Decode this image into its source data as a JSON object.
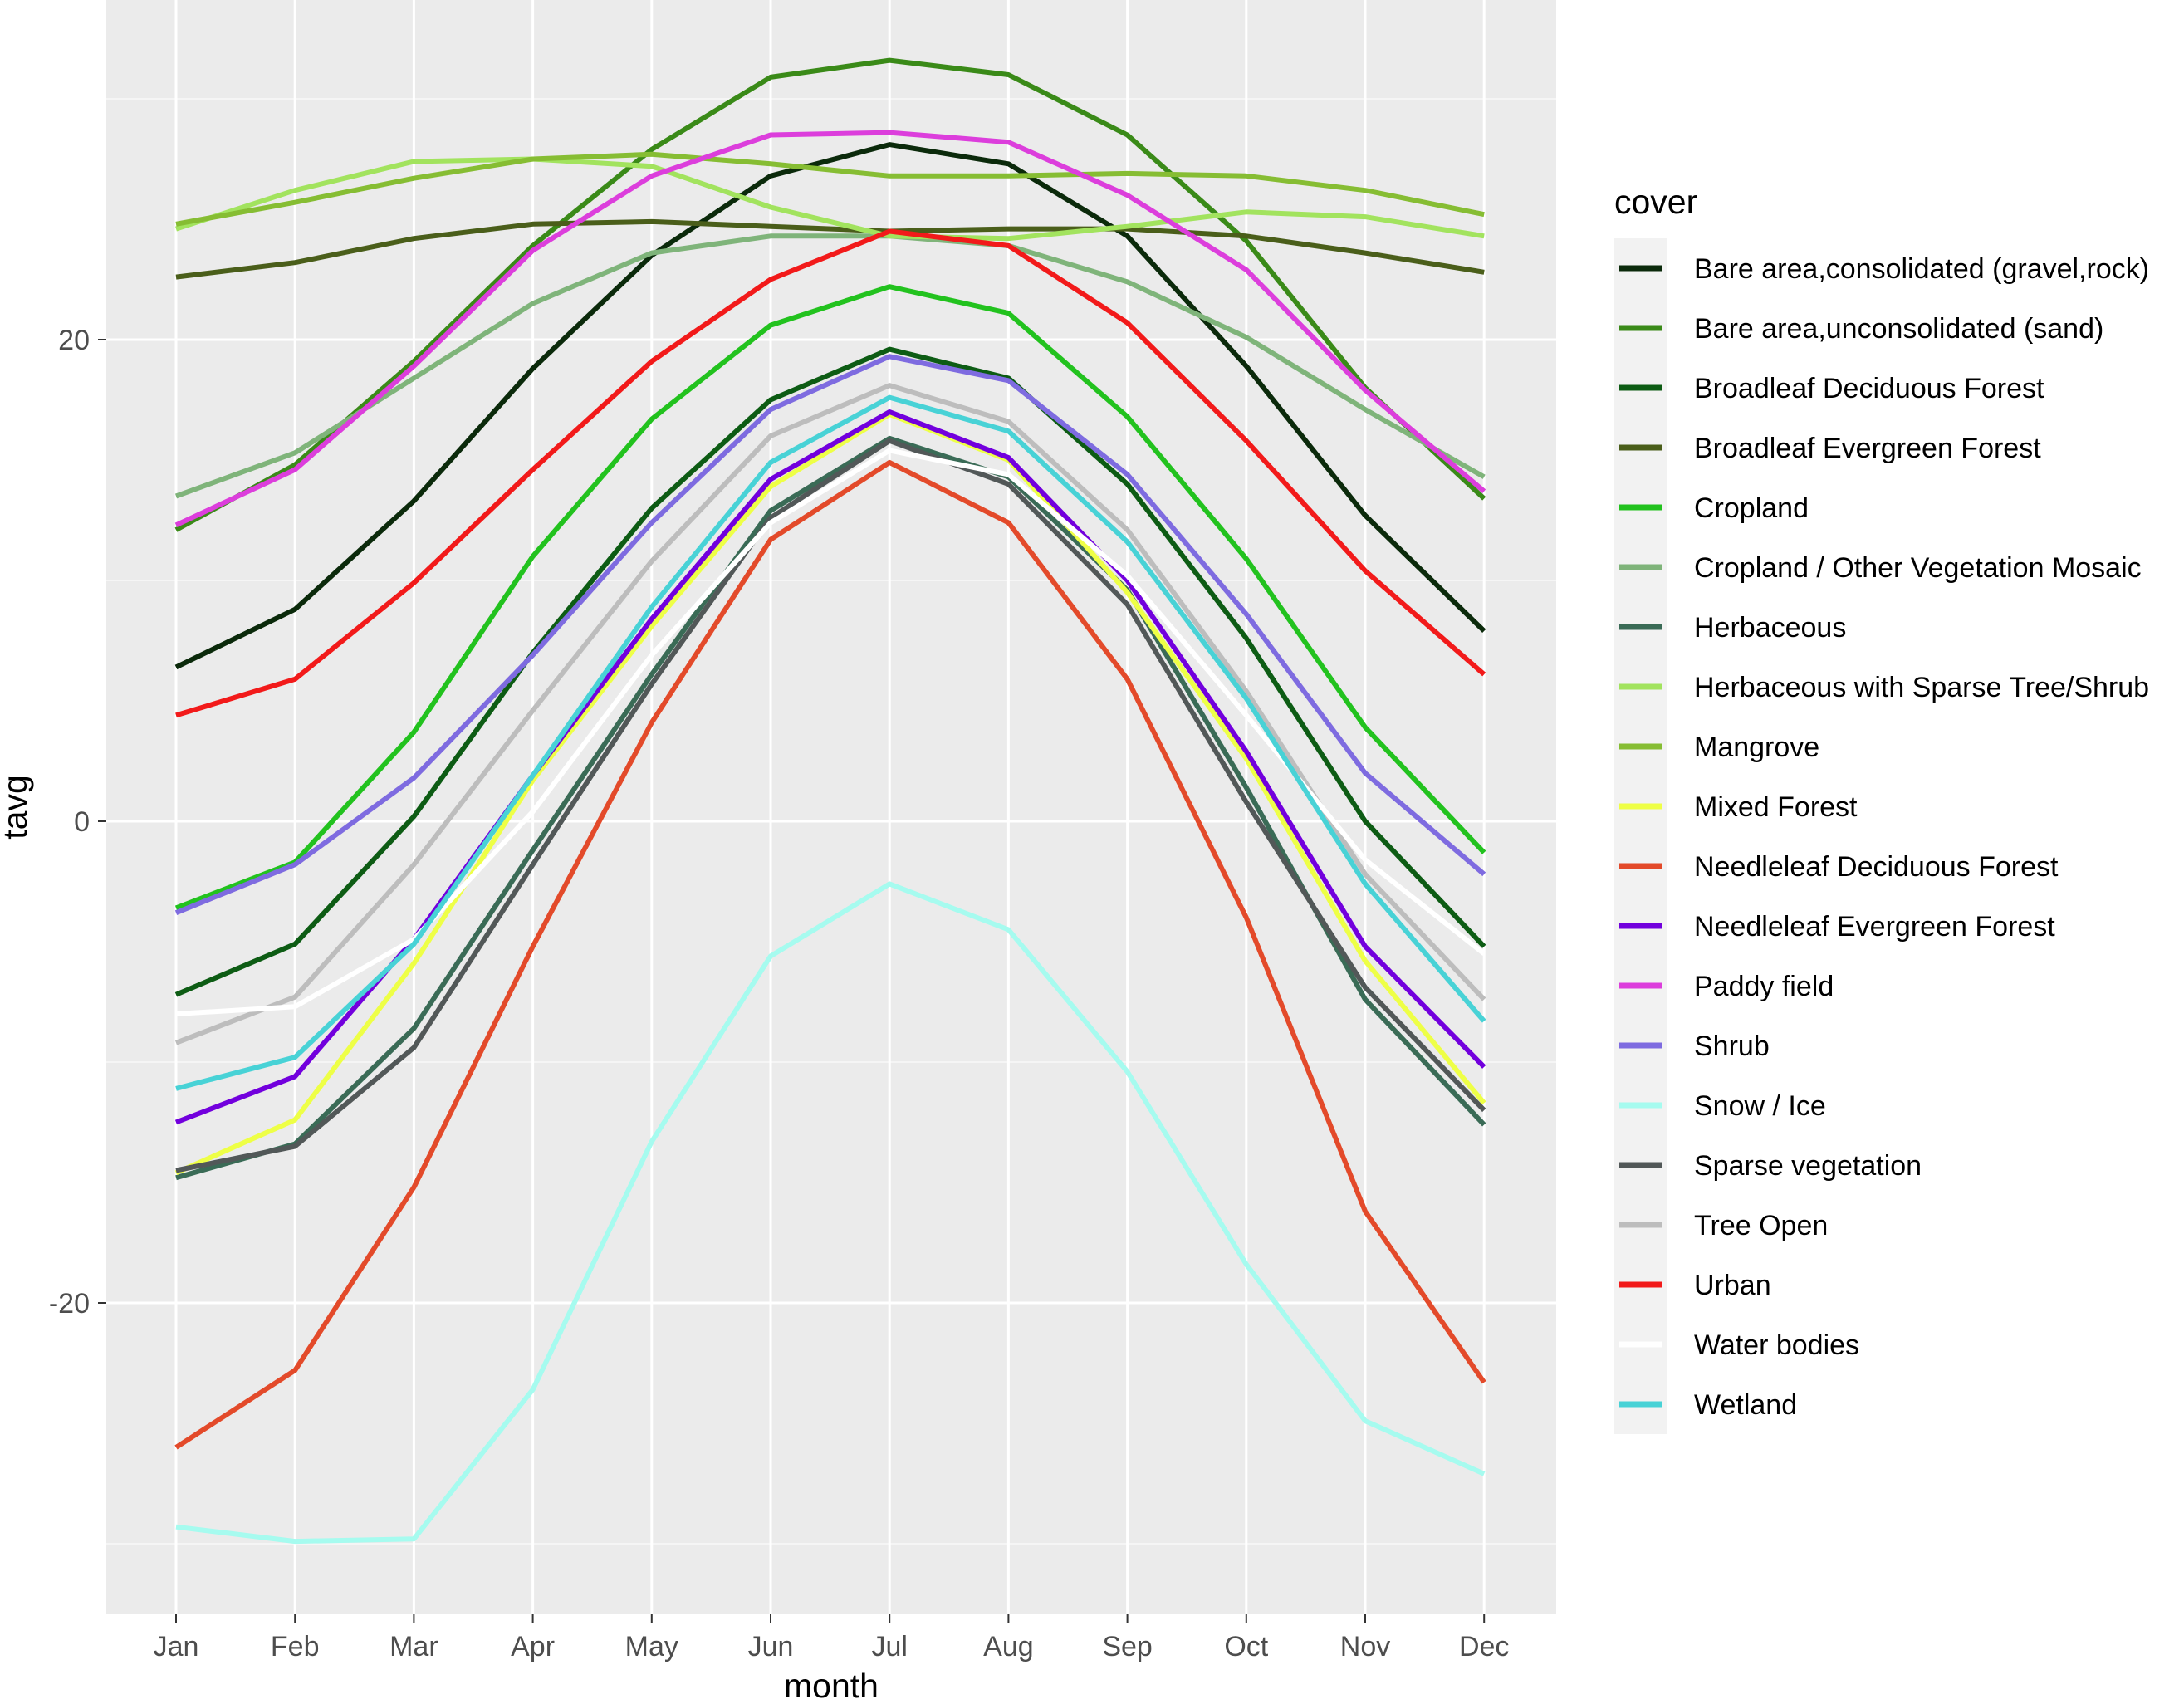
{
  "chart_data": {
    "type": "line",
    "xlabel": "month",
    "ylabel": "tavg",
    "categories": [
      "Jan",
      "Feb",
      "Mar",
      "Apr",
      "May",
      "Jun",
      "Jul",
      "Aug",
      "Sep",
      "Oct",
      "Nov",
      "Dec"
    ],
    "ylim": [
      -33,
      34
    ],
    "yticks": [
      -20,
      0,
      20
    ],
    "grid": true,
    "legend_title": "cover",
    "legend_position": "right",
    "series": [
      {
        "name": "Bare area,consolidated (gravel,rock)",
        "color": "#0b2a0b",
        "values": [
          6.4,
          8.8,
          13.3,
          18.8,
          23.5,
          26.8,
          28.1,
          27.3,
          24.3,
          18.9,
          12.7,
          7.9
        ]
      },
      {
        "name": "Bare area,unconsolidated (sand)",
        "color": "#3a8a18",
        "values": [
          12.1,
          14.8,
          19.1,
          23.9,
          27.9,
          30.9,
          31.6,
          31.0,
          28.5,
          24.1,
          18.0,
          13.4
        ]
      },
      {
        "name": "Broadleaf Deciduous Forest",
        "color": "#0d5c14",
        "values": [
          -7.2,
          -5.1,
          0.2,
          7.0,
          13.0,
          17.5,
          19.6,
          18.4,
          14.0,
          7.6,
          0.0,
          -5.2
        ]
      },
      {
        "name": "Broadleaf Evergreen Forest",
        "color": "#4a5e1a",
        "values": [
          22.6,
          23.2,
          24.2,
          24.8,
          24.9,
          24.7,
          24.5,
          24.6,
          24.6,
          24.3,
          23.6,
          22.8
        ]
      },
      {
        "name": "Cropland",
        "color": "#22c21e",
        "values": [
          -3.6,
          -1.7,
          3.7,
          11.0,
          16.7,
          20.6,
          22.2,
          21.1,
          16.8,
          10.9,
          3.9,
          -1.3
        ]
      },
      {
        "name": "Cropland / Other Vegetation Mosaic",
        "color": "#7fb47a",
        "values": [
          13.5,
          15.3,
          18.4,
          21.5,
          23.6,
          24.3,
          24.3,
          23.9,
          22.4,
          20.1,
          17.1,
          14.3
        ]
      },
      {
        "name": "Herbaceous",
        "color": "#3a6b56",
        "values": [
          -14.8,
          -13.4,
          -8.6,
          -1.2,
          6.1,
          12.9,
          15.9,
          14.3,
          9.6,
          1.4,
          -7.4,
          -12.6
        ]
      },
      {
        "name": "Herbaceous with Sparse Tree/Shrub",
        "color": "#a2e35e",
        "values": [
          24.6,
          26.2,
          27.4,
          27.5,
          27.2,
          25.5,
          24.3,
          24.2,
          24.7,
          25.3,
          25.1,
          24.3
        ]
      },
      {
        "name": "Mangrove",
        "color": "#86bd33",
        "values": [
          24.8,
          25.7,
          26.7,
          27.5,
          27.7,
          27.3,
          26.8,
          26.8,
          26.9,
          26.8,
          26.2,
          25.2
        ]
      },
      {
        "name": "Mixed Forest",
        "color": "#eeff46",
        "values": [
          -14.6,
          -12.4,
          -5.9,
          1.7,
          8.1,
          13.9,
          16.9,
          15.0,
          9.5,
          2.6,
          -5.8,
          -11.7
        ]
      },
      {
        "name": "Needleleaf Deciduous Forest",
        "color": "#e34a2a",
        "values": [
          -26.0,
          -22.8,
          -15.2,
          -5.2,
          4.1,
          11.7,
          14.9,
          12.4,
          5.9,
          -4.0,
          -16.2,
          -23.3
        ]
      },
      {
        "name": "Needleleaf Evergreen Forest",
        "color": "#7200dd",
        "values": [
          -12.5,
          -10.6,
          -4.9,
          1.9,
          8.4,
          14.2,
          17.0,
          15.1,
          10.0,
          2.9,
          -5.2,
          -10.2
        ]
      },
      {
        "name": "Paddy field",
        "color": "#dc3edc",
        "values": [
          12.3,
          14.6,
          18.9,
          23.7,
          26.8,
          28.5,
          28.6,
          28.2,
          26.0,
          22.9,
          17.9,
          13.7
        ]
      },
      {
        "name": "Shrub",
        "color": "#7e6be0",
        "values": [
          -3.8,
          -1.8,
          1.8,
          6.9,
          12.4,
          17.1,
          19.3,
          18.3,
          14.4,
          8.6,
          2.0,
          -2.2
        ]
      },
      {
        "name": "Snow / Ice",
        "color": "#a6fbef",
        "values": [
          -29.3,
          -29.9,
          -29.8,
          -23.6,
          -13.3,
          -5.6,
          -2.6,
          -4.5,
          -10.4,
          -18.4,
          -24.9,
          -27.1
        ]
      },
      {
        "name": "Sparse vegetation",
        "color": "#525858",
        "values": [
          -14.5,
          -13.5,
          -9.4,
          -1.8,
          5.7,
          12.6,
          15.8,
          14.0,
          9.0,
          0.8,
          -6.9,
          -12.0
        ]
      },
      {
        "name": "Tree Open",
        "color": "#bdbdbd",
        "values": [
          -9.2,
          -7.3,
          -1.8,
          4.6,
          10.8,
          16.0,
          18.1,
          16.6,
          12.1,
          5.4,
          -2.2,
          -7.4
        ]
      },
      {
        "name": "Urban",
        "color": "#f21a1a",
        "values": [
          4.4,
          5.9,
          9.9,
          14.6,
          19.1,
          22.5,
          24.5,
          23.9,
          20.7,
          15.8,
          10.4,
          6.1
        ]
      },
      {
        "name": "Water bodies",
        "color": "#ffffff",
        "values": [
          -8.0,
          -7.7,
          -4.9,
          0.4,
          6.9,
          12.4,
          15.4,
          14.4,
          10.2,
          4.4,
          -1.6,
          -5.5
        ]
      },
      {
        "name": "Wetland",
        "color": "#48d2d6",
        "values": [
          -11.1,
          -9.8,
          -5.1,
          1.9,
          8.9,
          14.9,
          17.6,
          16.2,
          11.6,
          5.1,
          -2.6,
          -8.3
        ]
      }
    ]
  },
  "colors": {
    "panel_background": "#ebebeb",
    "grid_major": "#ffffff",
    "grid_minor": "#f5f5f5",
    "legend_key_background": "#f2f2f2",
    "tick_text": "#4d4d4d"
  }
}
